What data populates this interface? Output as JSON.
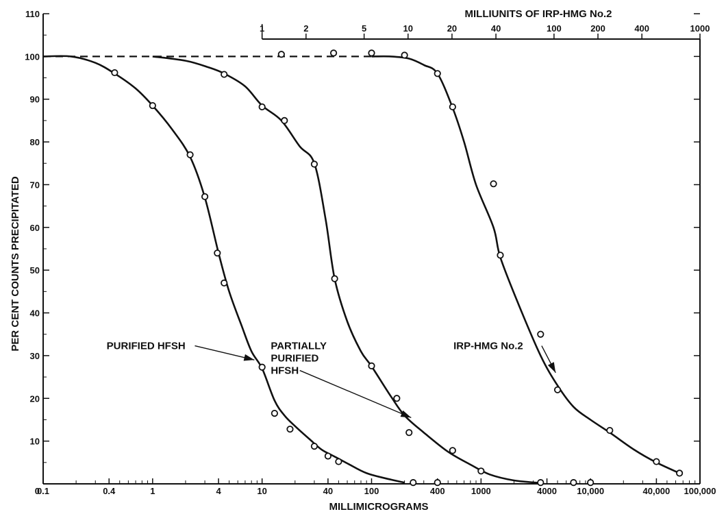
{
  "chart_data": {
    "type": "line",
    "title": "",
    "xlabel": "MILLIMICROGRAMS",
    "ylabel": "PER CENT COUNTS PRECIPITATED",
    "x_scale": "log",
    "xlim": [
      0.1,
      100000
    ],
    "ylim": [
      0,
      110
    ],
    "grid": false,
    "x_tick_labels": [
      {
        "value": 0.1,
        "label": "0.1"
      },
      {
        "value": 0.4,
        "label": "0.4"
      },
      {
        "value": 1,
        "label": "1"
      },
      {
        "value": 4,
        "label": "4"
      },
      {
        "value": 10,
        "label": "10"
      },
      {
        "value": 40,
        "label": "40"
      },
      {
        "value": 100,
        "label": "100"
      },
      {
        "value": 400,
        "label": "400"
      },
      {
        "value": 1000,
        "label": "1000"
      },
      {
        "value": 4000,
        "label": "4000"
      },
      {
        "value": 10000,
        "label": "10,000"
      },
      {
        "value": 40000,
        "label": "40,000"
      },
      {
        "value": 100000,
        "label": "100,000"
      }
    ],
    "y_tick_labels": [
      {
        "value": 10,
        "label": "10"
      },
      {
        "value": 20,
        "label": "20"
      },
      {
        "value": 30,
        "label": "30"
      },
      {
        "value": 40,
        "label": "40"
      },
      {
        "value": 50,
        "label": "50"
      },
      {
        "value": 60,
        "label": "60"
      },
      {
        "value": 70,
        "label": "70"
      },
      {
        "value": 80,
        "label": "80"
      },
      {
        "value": 90,
        "label": "90"
      },
      {
        "value": 100,
        "label": "100"
      },
      {
        "value": 110,
        "label": "110"
      }
    ],
    "top_axis": {
      "label": "MILLIUNITS OF IRP-HMG No.2",
      "x_range_bottom": [
        10,
        100000
      ],
      "range": [
        1,
        1000
      ],
      "ticks": [
        {
          "value": 1,
          "label": "1"
        },
        {
          "value": 2,
          "label": "2"
        },
        {
          "value": 5,
          "label": "5"
        },
        {
          "value": 10,
          "label": "10"
        },
        {
          "value": 20,
          "label": "20"
        },
        {
          "value": 40,
          "label": "40"
        },
        {
          "value": 100,
          "label": "100"
        },
        {
          "value": 200,
          "label": "200"
        },
        {
          "value": 400,
          "label": "400"
        },
        {
          "value": 1000,
          "label": "1000"
        }
      ]
    },
    "baseline_dashed": {
      "x": [
        0.1,
        100
      ],
      "y": 100
    },
    "series": [
      {
        "name": "PURIFIED HFSH",
        "curve": [
          [
            0.1,
            100
          ],
          [
            0.18,
            100
          ],
          [
            0.3,
            98.5
          ],
          [
            0.45,
            96
          ],
          [
            0.7,
            92.5
          ],
          [
            1,
            88.5
          ],
          [
            1.5,
            83
          ],
          [
            2.2,
            76.5
          ],
          [
            3,
            67
          ],
          [
            4,
            54
          ],
          [
            5,
            45
          ],
          [
            6.5,
            37
          ],
          [
            8,
            31
          ],
          [
            10,
            27
          ],
          [
            13,
            19.5
          ],
          [
            16,
            16
          ],
          [
            20,
            13.5
          ],
          [
            27,
            10.5
          ],
          [
            35,
            8
          ],
          [
            45,
            6.5
          ],
          [
            60,
            4.8
          ],
          [
            90,
            2.5
          ],
          [
            150,
            1
          ],
          [
            200,
            0.3
          ]
        ],
        "points": [
          [
            0.45,
            96.2
          ],
          [
            1,
            88.5
          ],
          [
            2.2,
            77
          ],
          [
            3,
            67.2
          ],
          [
            3.9,
            54
          ],
          [
            4.5,
            47
          ],
          [
            10,
            27.3
          ],
          [
            13,
            16.5
          ],
          [
            18,
            12.8
          ],
          [
            30,
            8.8
          ],
          [
            40,
            6.5
          ],
          [
            50,
            5.2
          ],
          [
            240,
            0.3
          ]
        ]
      },
      {
        "name": "PARTIALLY PURIFIED HFSH",
        "curve": [
          [
            1,
            100
          ],
          [
            2,
            99
          ],
          [
            3.2,
            97.5
          ],
          [
            4.5,
            96
          ],
          [
            7,
            93
          ],
          [
            10,
            88.5
          ],
          [
            15,
            85
          ],
          [
            22,
            79
          ],
          [
            30,
            75
          ],
          [
            38,
            62
          ],
          [
            46,
            48
          ],
          [
            60,
            38
          ],
          [
            80,
            31
          ],
          [
            100,
            27.5
          ],
          [
            150,
            20.5
          ],
          [
            200,
            16
          ],
          [
            300,
            12
          ],
          [
            500,
            7.5
          ],
          [
            800,
            4.5
          ],
          [
            1200,
            2.2
          ],
          [
            2000,
            0.8
          ],
          [
            3500,
            0.2
          ]
        ],
        "points": [
          [
            4.5,
            95.8
          ],
          [
            10,
            88.2
          ],
          [
            16,
            85
          ],
          [
            30,
            74.8
          ],
          [
            46,
            48
          ],
          [
            100,
            27.6
          ],
          [
            170,
            20
          ],
          [
            220,
            12
          ],
          [
            400,
            0.3
          ],
          [
            550,
            7.8
          ],
          [
            1000,
            3
          ],
          [
            3500,
            0.3
          ]
        ]
      },
      {
        "name": "IRP-HMG No.2",
        "curve": [
          [
            100,
            100
          ],
          [
            150,
            100
          ],
          [
            220,
            99.5
          ],
          [
            300,
            98
          ],
          [
            400,
            96
          ],
          [
            550,
            88
          ],
          [
            700,
            80
          ],
          [
            900,
            70
          ],
          [
            1300,
            60
          ],
          [
            1500,
            53
          ],
          [
            2200,
            42
          ],
          [
            3500,
            30
          ],
          [
            5000,
            23
          ],
          [
            7000,
            18
          ],
          [
            10000,
            15
          ],
          [
            15000,
            12
          ],
          [
            25000,
            8
          ],
          [
            40000,
            5
          ],
          [
            65000,
            2.5
          ]
        ],
        "points": [
          [
            15,
            100.5
          ],
          [
            45,
            100.8
          ],
          [
            100,
            100.8
          ],
          [
            200,
            100.3
          ],
          [
            400,
            96
          ],
          [
            550,
            88.2
          ],
          [
            1300,
            70.2
          ],
          [
            1500,
            53.5
          ],
          [
            3500,
            35
          ],
          [
            5000,
            22
          ],
          [
            7000,
            0.3
          ],
          [
            10000,
            0.3
          ],
          [
            15000,
            12.5
          ],
          [
            40000,
            5.2
          ],
          [
            65000,
            2.5
          ]
        ]
      }
    ],
    "annotations": [
      {
        "series": "PURIFIED HFSH",
        "lines": [
          "PURIFIED HFSH"
        ],
        "label_at": [
          0.38,
          31.5
        ],
        "arrow_to": [
          8.5,
          29
        ]
      },
      {
        "series": "PARTIALLY PURIFIED HFSH",
        "lines": [
          "PARTIALLY",
          "PURIFIED",
          "HFSH"
        ],
        "label_at": [
          12,
          31.5
        ],
        "arrow_to": [
          230,
          15.5
        ]
      },
      {
        "series": "IRP-HMG No.2",
        "lines": [
          "IRP-HMG  No.2"
        ],
        "label_at": [
          560,
          31.5
        ],
        "arrow_to": [
          4800,
          26
        ]
      }
    ]
  }
}
